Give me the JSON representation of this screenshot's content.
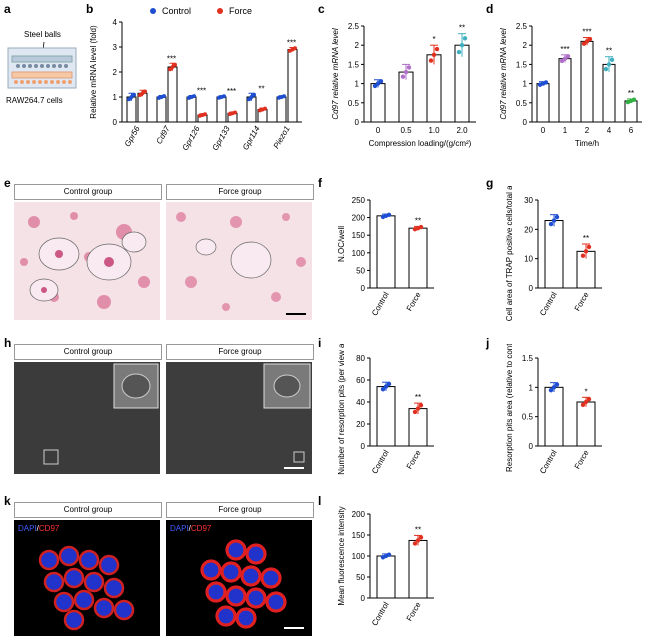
{
  "panels": {
    "a": {
      "letter": "a",
      "beads_label": "Steel balls",
      "cells_label": "RAW264.7 cells"
    },
    "b": {
      "letter": "b"
    },
    "c": {
      "letter": "c"
    },
    "d": {
      "letter": "d"
    },
    "e": {
      "letter": "e",
      "left": "Control group",
      "right": "Force group"
    },
    "f": {
      "letter": "f"
    },
    "g": {
      "letter": "g"
    },
    "h": {
      "letter": "h",
      "left": "Control group",
      "right": "Force group"
    },
    "i": {
      "letter": "i"
    },
    "j": {
      "letter": "j"
    },
    "k": {
      "letter": "k",
      "left": "Control group",
      "right": "Force group",
      "dapi": "DAPI",
      "sep": "/",
      "cd97": "CD97"
    },
    "l": {
      "letter": "l"
    }
  },
  "colors": {
    "control": "#1f4fd0",
    "force": "#e03020",
    "purple": "#b070c8",
    "teal": "#40b0c0",
    "green": "#30b040",
    "bar_edge": "#000"
  },
  "chart_data": [
    {
      "id": "b",
      "type": "bar",
      "ylabel": "Relative mRNA level (fold)",
      "ylim": [
        0,
        4
      ],
      "yticks": [
        0,
        1,
        2,
        3,
        4
      ],
      "categories": [
        "Gpr56",
        "Cd97",
        "Gpr126",
        "Gpr133",
        "Gpr114",
        "Piezo1"
      ],
      "legend": [
        "Control",
        "Force"
      ],
      "series": [
        {
          "name": "Control",
          "values": [
            1.0,
            1.0,
            1.0,
            1.0,
            1.0,
            1.0
          ],
          "errors": [
            0.15,
            0.06,
            0.06,
            0.05,
            0.15,
            0.05
          ]
        },
        {
          "name": "Force",
          "values": [
            1.15,
            2.2,
            0.28,
            0.35,
            0.5,
            2.9
          ],
          "errors": [
            0.12,
            0.15,
            0.05,
            0.05,
            0.06,
            0.08
          ]
        }
      ],
      "sig": [
        "",
        "***",
        "***",
        "***",
        "**",
        "***"
      ]
    },
    {
      "id": "c",
      "type": "bar",
      "ylabel": "Cd97 relative mRNA level",
      "xlabel": "Compression loading/(g/cm²)",
      "ylim": [
        0,
        2.5
      ],
      "yticks": [
        0,
        0.5,
        1.0,
        1.5,
        2.0,
        2.5
      ],
      "categories": [
        "0",
        "0.5",
        "1.0",
        "2.0"
      ],
      "values": [
        1.0,
        1.3,
        1.75,
        2.0
      ],
      "errors": [
        0.1,
        0.2,
        0.25,
        0.3
      ],
      "sig": [
        "",
        "",
        "*",
        "**"
      ]
    },
    {
      "id": "d",
      "type": "bar",
      "ylabel": "Cd97 relative mRNA level",
      "xlabel": "Time/h",
      "ylim": [
        0,
        2.5
      ],
      "yticks": [
        0,
        0.5,
        1.0,
        1.5,
        2.0,
        2.5
      ],
      "categories": [
        "0",
        "1",
        "2",
        "4",
        "6"
      ],
      "values": [
        1.0,
        1.65,
        2.1,
        1.5,
        0.55
      ],
      "errors": [
        0.05,
        0.1,
        0.1,
        0.2,
        0.05
      ],
      "sig": [
        "",
        "***",
        "***",
        "**",
        "**"
      ]
    },
    {
      "id": "f",
      "type": "bar",
      "ylabel": "N.OC/well",
      "ylim": [
        0,
        250
      ],
      "yticks": [
        0,
        50,
        100,
        150,
        200,
        250
      ],
      "categories": [
        "Control",
        "Force"
      ],
      "values": [
        205,
        170
      ],
      "errors": [
        5,
        5
      ],
      "sig": [
        "",
        "**"
      ]
    },
    {
      "id": "g",
      "type": "bar",
      "ylabel": "Cell area of TRAP positive cells/total area%",
      "ylim": [
        0,
        30
      ],
      "yticks": [
        0,
        10,
        20,
        30
      ],
      "categories": [
        "Control",
        "Force"
      ],
      "values": [
        23,
        12.5
      ],
      "errors": [
        2,
        2.5
      ],
      "sig": [
        "",
        "**"
      ]
    },
    {
      "id": "i",
      "type": "bar",
      "ylabel": "Number of resorption pits (per view area)",
      "ylim": [
        0,
        80
      ],
      "yticks": [
        0,
        20,
        40,
        60,
        80
      ],
      "categories": [
        "Control",
        "Force"
      ],
      "values": [
        54,
        34
      ],
      "errors": [
        4,
        5
      ],
      "sig": [
        "",
        "**"
      ]
    },
    {
      "id": "j",
      "type": "bar",
      "ylabel": "Resorption pits area (relative to control)",
      "ylim": [
        0,
        1.5
      ],
      "yticks": [
        0.0,
        0.5,
        1.0,
        1.5
      ],
      "categories": [
        "Control",
        "Force"
      ],
      "values": [
        1.0,
        0.75
      ],
      "errors": [
        0.08,
        0.08
      ],
      "sig": [
        "",
        "*"
      ]
    },
    {
      "id": "l",
      "type": "bar",
      "ylabel": "Mean fluorescence intensity",
      "ylim": [
        0,
        200
      ],
      "yticks": [
        0,
        50,
        100,
        150,
        200
      ],
      "categories": [
        "Control",
        "Force"
      ],
      "values": [
        100,
        137
      ],
      "errors": [
        5,
        12
      ],
      "sig": [
        "",
        "**"
      ]
    }
  ]
}
